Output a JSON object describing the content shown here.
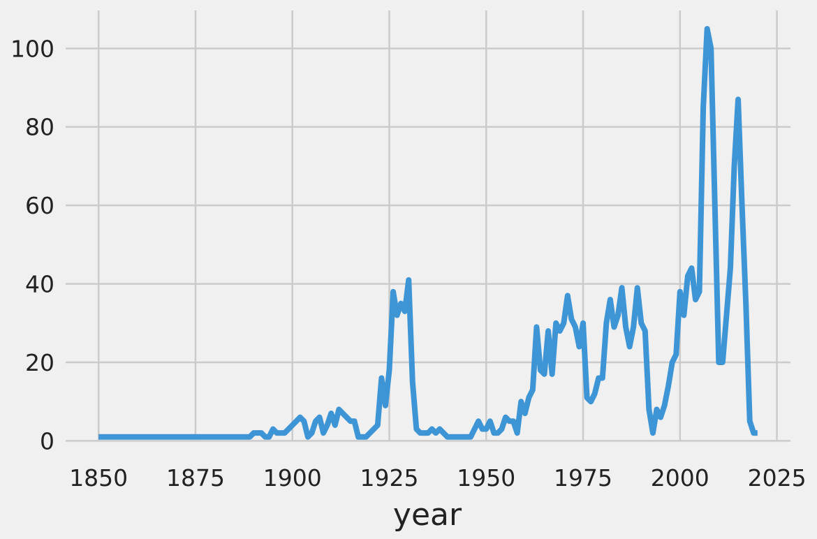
{
  "chart_data": {
    "type": "line",
    "xlabel": "year",
    "x": [
      1850,
      1851,
      1852,
      1853,
      1854,
      1855,
      1856,
      1857,
      1858,
      1859,
      1860,
      1861,
      1862,
      1863,
      1864,
      1865,
      1866,
      1867,
      1868,
      1869,
      1870,
      1871,
      1872,
      1873,
      1874,
      1875,
      1876,
      1877,
      1878,
      1879,
      1880,
      1881,
      1882,
      1883,
      1884,
      1885,
      1886,
      1887,
      1888,
      1889,
      1890,
      1891,
      1892,
      1893,
      1894,
      1895,
      1896,
      1897,
      1898,
      1899,
      1900,
      1901,
      1902,
      1903,
      1904,
      1905,
      1906,
      1907,
      1908,
      1909,
      1910,
      1911,
      1912,
      1913,
      1914,
      1915,
      1916,
      1917,
      1918,
      1919,
      1920,
      1921,
      1922,
      1923,
      1924,
      1925,
      1926,
      1927,
      1928,
      1929,
      1930,
      1931,
      1932,
      1933,
      1934,
      1935,
      1936,
      1937,
      1938,
      1939,
      1940,
      1941,
      1942,
      1943,
      1944,
      1945,
      1946,
      1947,
      1948,
      1949,
      1950,
      1951,
      1952,
      1953,
      1954,
      1955,
      1956,
      1957,
      1958,
      1959,
      1960,
      1961,
      1962,
      1963,
      1964,
      1965,
      1966,
      1967,
      1968,
      1969,
      1970,
      1971,
      1972,
      1973,
      1974,
      1975,
      1976,
      1977,
      1978,
      1979,
      1980,
      1981,
      1982,
      1983,
      1984,
      1985,
      1986,
      1987,
      1988,
      1989,
      1990,
      1991,
      1992,
      1993,
      1994,
      1995,
      1996,
      1997,
      1998,
      1999,
      2000,
      2001,
      2002,
      2003,
      2004,
      2005,
      2006,
      2007,
      2008,
      2009,
      2010,
      2011,
      2012,
      2013,
      2014,
      2015,
      2016,
      2017,
      2018,
      2019,
      2020
    ],
    "series": [
      {
        "color": "#3d95d6",
        "values": [
          1,
          1,
          1,
          1,
          1,
          1,
          1,
          1,
          1,
          1,
          1,
          1,
          1,
          1,
          1,
          1,
          1,
          1,
          1,
          1,
          1,
          1,
          1,
          1,
          1,
          1,
          1,
          1,
          1,
          1,
          1,
          1,
          1,
          1,
          1,
          1,
          1,
          1,
          1,
          1,
          2,
          2,
          2,
          1,
          1,
          3,
          2,
          2,
          2,
          3,
          4,
          5,
          6,
          5,
          1,
          2,
          5,
          6,
          2,
          4,
          7,
          4,
          8,
          7,
          6,
          5,
          5,
          1,
          1,
          1,
          2,
          3,
          4,
          16,
          9,
          18,
          38,
          32,
          35,
          33,
          41,
          15,
          3,
          2,
          2,
          2,
          3,
          2,
          3,
          2,
          1,
          1,
          1,
          1,
          1,
          1,
          1,
          3,
          5,
          3,
          3,
          5,
          2,
          2,
          3,
          6,
          5,
          5,
          2,
          10,
          7,
          11,
          13,
          29,
          18,
          17,
          28,
          17,
          30,
          28,
          30,
          37,
          31,
          29,
          24,
          30,
          11,
          10,
          12,
          16,
          16,
          30,
          36,
          29,
          32,
          39,
          29,
          24,
          29,
          39,
          30,
          28,
          8,
          2,
          8,
          6,
          9,
          14,
          20,
          22,
          38,
          32,
          42,
          44,
          36,
          38,
          85,
          105,
          100,
          60,
          20,
          20,
          32,
          44,
          70,
          87,
          60,
          35,
          5,
          2,
          2
        ]
      }
    ],
    "xlim": [
      1841.5,
      2028.5
    ],
    "ylim": [
      -4.2,
      110.2
    ],
    "xticks": [
      1850,
      1875,
      1900,
      1925,
      1950,
      1975,
      2000,
      2025
    ],
    "yticks": [
      0,
      20,
      40,
      60,
      80,
      100
    ],
    "grid": true
  }
}
